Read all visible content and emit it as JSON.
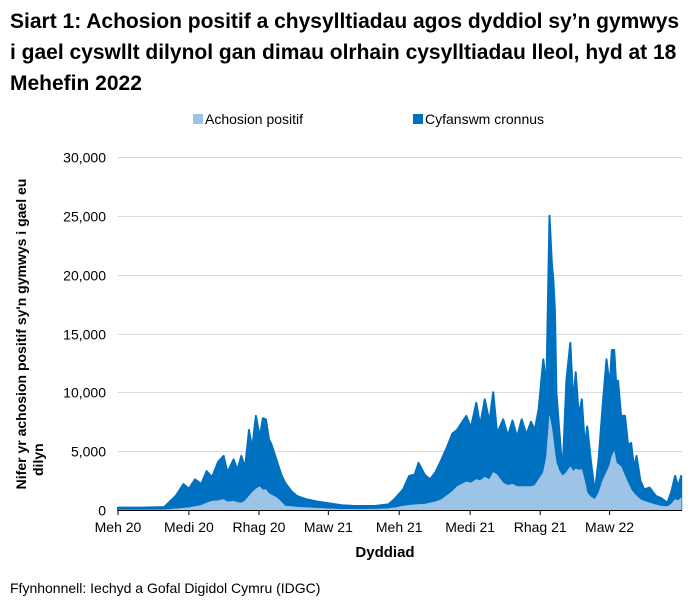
{
  "chart_data": {
    "type": "area",
    "title": "Siart 1: Achosion positif a chysylltiadau agos dyddiol sy’n gymwys i gael cyswllt dilynol gan dimau olrhain cysylltiadau lleol, hyd at 18 Mehefin 2022",
    "xlabel": "Dyddiad",
    "ylabel_lines": [
      "Nifer yr achosion positif sy'n gymwys i gael eu",
      "dilyn"
    ],
    "x_units": "days since 1 June 2020",
    "xlim": [
      0,
      732
    ],
    "ylim": [
      0,
      30000
    ],
    "grid": true,
    "legend_position": "top",
    "y_ticks": [
      {
        "value": 0,
        "label": "0"
      },
      {
        "value": 5000,
        "label": "5,000"
      },
      {
        "value": 10000,
        "label": "10,000"
      },
      {
        "value": 15000,
        "label": "15,000"
      },
      {
        "value": 20000,
        "label": "20,000"
      },
      {
        "value": 25000,
        "label": "25,000"
      },
      {
        "value": 30000,
        "label": "30,000"
      }
    ],
    "x_ticks": [
      {
        "value": 0,
        "label": "Meh 20"
      },
      {
        "value": 92,
        "label": "Medi 20"
      },
      {
        "value": 183,
        "label": "Rhag 20"
      },
      {
        "value": 273,
        "label": "Maw 21"
      },
      {
        "value": 365,
        "label": "Meh 21"
      },
      {
        "value": 457,
        "label": "Medi 21"
      },
      {
        "value": 548,
        "label": "Rhag 21"
      },
      {
        "value": 638,
        "label": "Maw 22"
      }
    ],
    "x": [
      0,
      30,
      60,
      75,
      85,
      92,
      100,
      108,
      115,
      122,
      130,
      137,
      142,
      150,
      155,
      160,
      165,
      170,
      174,
      179,
      184,
      188,
      192,
      196,
      199,
      206,
      212,
      217,
      225,
      232,
      245,
      260,
      275,
      290,
      305,
      321,
      335,
      351,
      360,
      370,
      378,
      385,
      390,
      398,
      405,
      412,
      420,
      428,
      434,
      440,
      446,
      452,
      458,
      465,
      470,
      476,
      482,
      487,
      492,
      500,
      506,
      512,
      518,
      524,
      530,
      536,
      541,
      546,
      552,
      556,
      560,
      563,
      565,
      567,
      569,
      573,
      577,
      582,
      587,
      591,
      594,
      598,
      602,
      606,
      609,
      614,
      619,
      624,
      629,
      634,
      638,
      641,
      644,
      647,
      649,
      653,
      658,
      662,
      666,
      670,
      673,
      678,
      683,
      690,
      698,
      705,
      713,
      718,
      723,
      727,
      731
    ],
    "series": [
      {
        "name": "Cyfanswm cronnus",
        "color": "#0070c0",
        "values": [
          200,
          200,
          250,
          1200,
          2200,
          1800,
          2600,
          2200,
          3300,
          2800,
          4100,
          4600,
          3200,
          4300,
          3400,
          4600,
          3600,
          6800,
          5200,
          8000,
          6200,
          7800,
          7700,
          6000,
          5600,
          4200,
          3000,
          2300,
          1600,
          1200,
          900,
          700,
          550,
          400,
          350,
          340,
          350,
          480,
          1000,
          1750,
          2900,
          3000,
          4000,
          3000,
          2600,
          3200,
          4300,
          5500,
          6500,
          6800,
          7400,
          8000,
          7000,
          9100,
          7200,
          9400,
          7500,
          10000,
          6500,
          7700,
          6300,
          7600,
          6200,
          7700,
          6400,
          7500,
          6800,
          8600,
          12800,
          10500,
          25000,
          21000,
          19600,
          17000,
          10000,
          6500,
          3200,
          11000,
          14200,
          9000,
          11700,
          8000,
          9400,
          5400,
          7100,
          4000,
          1500,
          4500,
          8800,
          12800,
          10500,
          13600,
          13600,
          10200,
          11000,
          8000,
          8000,
          5500,
          5700,
          3500,
          4600,
          2500,
          1750,
          1900,
          1200,
          1000,
          620,
          1500,
          2900,
          2000,
          2900
        ]
      },
      {
        "name": "Achosion positif",
        "color": "#9dc3e6",
        "values": [
          0,
          0,
          20,
          100,
          150,
          200,
          300,
          400,
          600,
          760,
          800,
          900,
          700,
          750,
          650,
          600,
          800,
          1200,
          1500,
          1800,
          2000,
          1700,
          1750,
          1400,
          1300,
          1050,
          700,
          340,
          300,
          250,
          200,
          150,
          100,
          60,
          60,
          60,
          80,
          120,
          200,
          340,
          400,
          450,
          480,
          500,
          600,
          700,
          900,
          1300,
          1600,
          2000,
          2200,
          2400,
          2300,
          2600,
          2500,
          2800,
          2600,
          3200,
          3000,
          2300,
          2100,
          2200,
          2000,
          2000,
          2000,
          2000,
          2100,
          2600,
          3200,
          4500,
          8000,
          7000,
          6000,
          4900,
          4000,
          3300,
          2900,
          3200,
          3700,
          3300,
          3500,
          3400,
          3450,
          2400,
          1470,
          1100,
          900,
          1500,
          2500,
          3200,
          3800,
          4600,
          5000,
          4000,
          3900,
          3700,
          2900,
          2300,
          1750,
          1400,
          1200,
          900,
          760,
          600,
          450,
          340,
          300,
          500,
          900,
          800,
          1050
        ]
      }
    ],
    "legend": [
      {
        "label": "Achosion positif",
        "color": "#9dc3e6"
      },
      {
        "label": "Cyfanswm cronnus",
        "color": "#0070c0"
      }
    ],
    "source": "Ffynhonnell: Iechyd a Gofal Digidol Cymru (IDGC)"
  }
}
